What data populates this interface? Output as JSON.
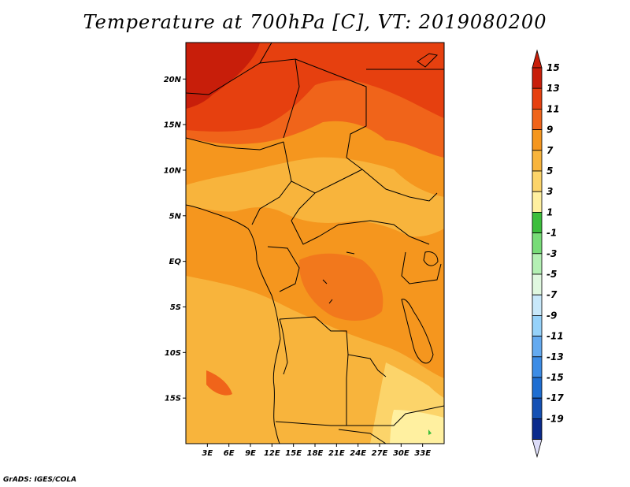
{
  "title": "Temperature at 700hPa [C], VT: 2019080200",
  "credit": "GrADS: IGES/COLA",
  "map": {
    "lon_range": [
      0,
      36
    ],
    "lat_range": [
      -20,
      24
    ],
    "lon_ticks": [
      {
        "value": 3,
        "label": "3E"
      },
      {
        "value": 6,
        "label": "6E"
      },
      {
        "value": 9,
        "label": "9E"
      },
      {
        "value": 12,
        "label": "12E"
      },
      {
        "value": 15,
        "label": "15E"
      },
      {
        "value": 18,
        "label": "18E"
      },
      {
        "value": 21,
        "label": "21E"
      },
      {
        "value": 24,
        "label": "24E"
      },
      {
        "value": 27,
        "label": "27E"
      },
      {
        "value": 30,
        "label": "30E"
      },
      {
        "value": 33,
        "label": "33E"
      }
    ],
    "lat_ticks": [
      {
        "value": 20,
        "label": "20N"
      },
      {
        "value": 15,
        "label": "15N"
      },
      {
        "value": 10,
        "label": "10N"
      },
      {
        "value": 5,
        "label": "5N"
      },
      {
        "value": 0,
        "label": "EQ"
      },
      {
        "value": -5,
        "label": "5S"
      },
      {
        "value": -10,
        "label": "10S"
      },
      {
        "value": -15,
        "label": "15S"
      }
    ]
  },
  "colorbar": {
    "levels": [
      {
        "label": "15",
        "color": "#c81e0a"
      },
      {
        "label": "13",
        "color": "#e6400f"
      },
      {
        "label": "11",
        "color": "#f0641a"
      },
      {
        "label": "9",
        "color": "#f5961e"
      },
      {
        "label": "7",
        "color": "#f8b43c"
      },
      {
        "label": "5",
        "color": "#fcd46a"
      },
      {
        "label": "3",
        "color": "#fff0a0"
      },
      {
        "label": "1",
        "color": "#3cbe3c"
      },
      {
        "label": "-1",
        "color": "#78dc78"
      },
      {
        "label": "-3",
        "color": "#b4f0b4"
      },
      {
        "label": "-5",
        "color": "#e0f8e0"
      },
      {
        "label": "-7",
        "color": "#c8e8fa"
      },
      {
        "label": "-9",
        "color": "#96d2fa"
      },
      {
        "label": "-11",
        "color": "#64aaf0"
      },
      {
        "label": "-13",
        "color": "#3c8ce6"
      },
      {
        "label": "-15",
        "color": "#1e6ed2"
      },
      {
        "label": "-17",
        "color": "#1450b4"
      },
      {
        "label": "-19",
        "color": "#0a2a8c"
      }
    ],
    "bottom_color": "#dcdcf8"
  }
}
